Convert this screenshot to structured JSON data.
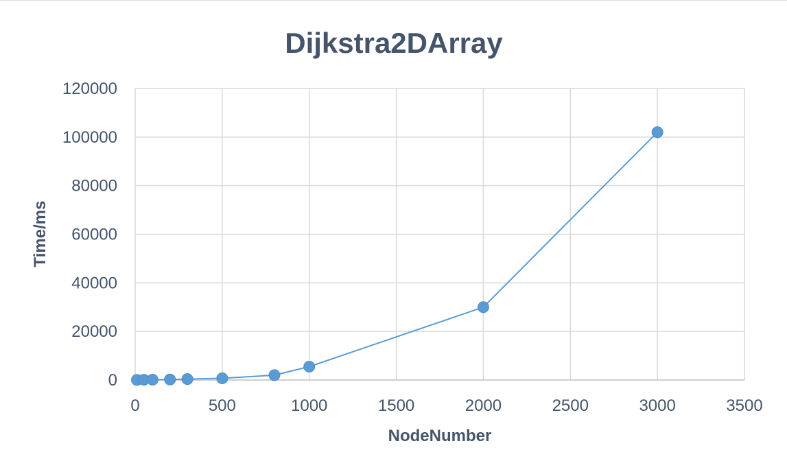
{
  "chart_data": {
    "type": "scatter",
    "title": "Dijkstra2DArray",
    "xlabel": "NodeNumber",
    "ylabel": "Time/ms",
    "xlim": [
      0,
      3500
    ],
    "ylim": [
      0,
      120000
    ],
    "xticks": [
      0,
      500,
      1000,
      1500,
      2000,
      2500,
      3000,
      3500
    ],
    "yticks": [
      0,
      20000,
      40000,
      60000,
      80000,
      100000,
      120000
    ],
    "grid": true,
    "legend": "none",
    "series": [
      {
        "color": "#5b9bd5",
        "x": [
          10,
          50,
          100,
          200,
          300,
          500,
          800,
          1000,
          2000,
          3000
        ],
        "y": [
          50,
          100,
          150,
          200,
          400,
          700,
          2000,
          5500,
          30000,
          102000
        ]
      }
    ]
  }
}
